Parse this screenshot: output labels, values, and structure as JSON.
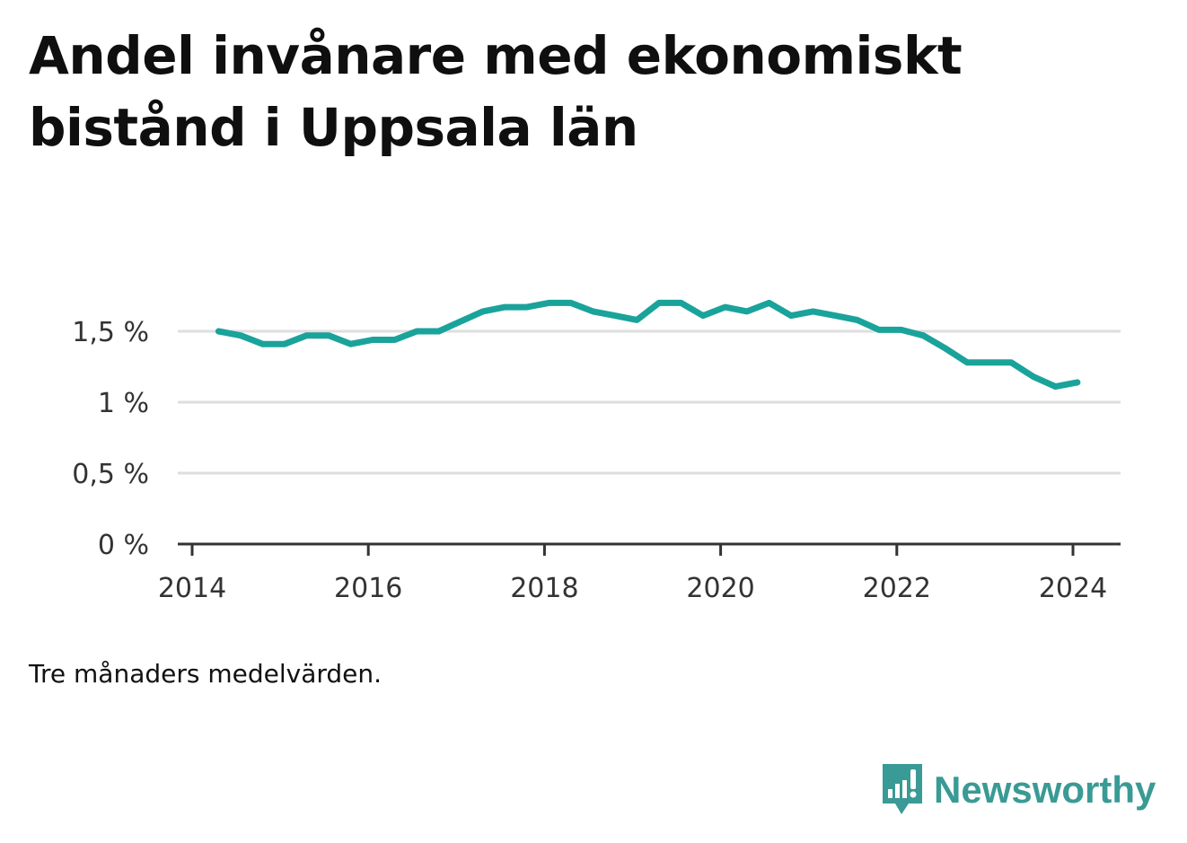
{
  "title": "Andel invånare med ekonomiskt bistånd i Uppsala län",
  "note": "Tre månaders medelvärden.",
  "brand": {
    "name": "Newsworthy",
    "icon": "newsworthy-logo-icon",
    "color": "#3a9a95"
  },
  "chart_data": {
    "type": "line",
    "x_axis": {
      "ticks": [
        2014,
        2016,
        2018,
        2020,
        2022,
        2024
      ],
      "range": [
        2014.0,
        2024.55
      ]
    },
    "y_axis": {
      "ticks": [
        0,
        0.5,
        1,
        1.5
      ],
      "tick_labels": [
        "0 %",
        "0,5 %",
        "1 %",
        "1,5 %"
      ],
      "range": [
        0,
        1.9
      ]
    },
    "grid": true,
    "line_color": "#1aa39a",
    "series": [
      {
        "x": [
          2014.3,
          2014.55,
          2014.8,
          2015.05,
          2015.3,
          2015.55,
          2015.8,
          2016.05,
          2016.3,
          2016.55,
          2016.8,
          2017.05,
          2017.3,
          2017.55,
          2017.8,
          2018.05,
          2018.3,
          2018.55,
          2018.8,
          2019.05,
          2019.3,
          2019.55,
          2019.8,
          2020.05,
          2020.3,
          2020.55,
          2020.8,
          2021.05,
          2021.3,
          2021.55,
          2021.8,
          2022.05,
          2022.3,
          2022.55,
          2022.8,
          2023.05,
          2023.3,
          2023.55,
          2023.8,
          2024.05
        ],
        "y": [
          1.5,
          1.47,
          1.41,
          1.41,
          1.47,
          1.47,
          1.41,
          1.44,
          1.44,
          1.5,
          1.5,
          1.57,
          1.64,
          1.67,
          1.67,
          1.7,
          1.7,
          1.64,
          1.61,
          1.58,
          1.7,
          1.7,
          1.61,
          1.67,
          1.64,
          1.7,
          1.61,
          1.64,
          1.61,
          1.58,
          1.51,
          1.51,
          1.47,
          1.38,
          1.28,
          1.28,
          1.28,
          1.18,
          1.11,
          1.14
        ]
      }
    ]
  }
}
